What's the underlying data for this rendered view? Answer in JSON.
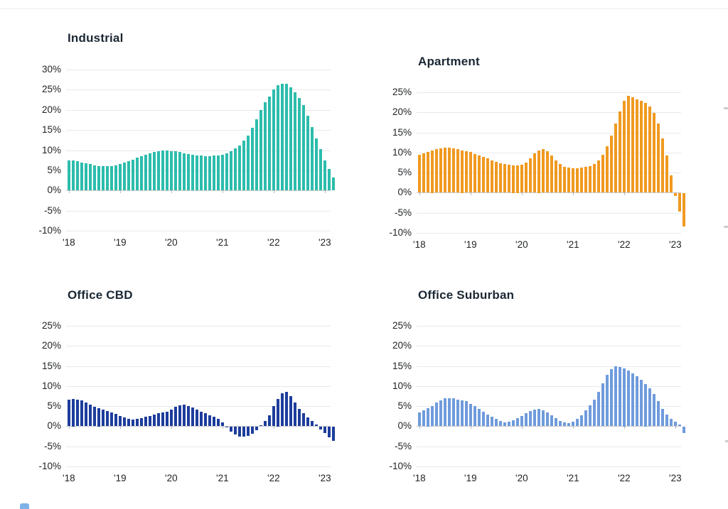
{
  "icons": {
    "bottom_left_partial": "blue-rounded-square-clipped"
  },
  "axis_unit": "%",
  "chart_data": [
    {
      "type": "bar",
      "title": "Industrial",
      "bar_color": "#2cbcac",
      "x_description": "monthly, Jan 2018 - Mar 2023",
      "x_tick_labels": [
        "'18",
        "'19",
        "'20",
        "'21",
        "'22",
        "'23"
      ],
      "y_tick_labels": [
        "30%",
        "25%",
        "20%",
        "15%",
        "10%",
        "5%",
        "0%",
        "-5%",
        "-10%"
      ],
      "ylim": [
        -10,
        30
      ],
      "grid": true,
      "values": [
        7.5,
        7.4,
        7.2,
        7.0,
        6.7,
        6.5,
        6.3,
        6.1,
        6.0,
        6.0,
        6.1,
        6.3,
        6.6,
        6.9,
        7.3,
        7.7,
        8.1,
        8.5,
        8.9,
        9.3,
        9.6,
        9.8,
        9.9,
        9.9,
        9.8,
        9.7,
        9.5,
        9.3,
        9.1,
        8.9,
        8.7,
        8.6,
        8.5,
        8.5,
        8.6,
        8.7,
        8.9,
        9.3,
        9.8,
        10.4,
        11.2,
        12.3,
        13.7,
        15.5,
        17.6,
        19.9,
        21.9,
        23.4,
        25.0,
        26.2,
        26.5,
        26.4,
        25.6,
        24.3,
        22.9,
        21.2,
        18.5,
        15.8,
        12.9,
        10.2,
        7.5,
        5.4,
        3.2
      ]
    },
    {
      "type": "bar",
      "title": "Apartment",
      "bar_color": "#f0991f",
      "x_description": "monthly, Jan 2018 - Mar 2023",
      "x_tick_labels": [
        "'18",
        "'19",
        "'20",
        "'21",
        "'22",
        "'23"
      ],
      "y_tick_labels": [
        "25%",
        "20%",
        "15%",
        "10%",
        "5%",
        "0%",
        "-5%",
        "-10%"
      ],
      "ylim": [
        -10,
        25
      ],
      "grid": true,
      "values": [
        9.4,
        9.8,
        10.2,
        10.6,
        10.9,
        11.1,
        11.2,
        11.2,
        11.1,
        10.8,
        10.6,
        10.4,
        10.1,
        9.7,
        9.3,
        8.9,
        8.5,
        8.1,
        7.7,
        7.4,
        7.1,
        7.0,
        6.8,
        6.8,
        7.0,
        7.5,
        8.6,
        9.8,
        10.6,
        10.8,
        10.4,
        9.3,
        8.0,
        7.1,
        6.5,
        6.3,
        6.1,
        6.1,
        6.2,
        6.4,
        6.7,
        7.2,
        8.1,
        9.5,
        11.5,
        14.2,
        17.3,
        20.3,
        22.8,
        24.1,
        23.7,
        23.3,
        22.9,
        22.4,
        21.4,
        19.9,
        17.2,
        13.5,
        9.2,
        4.4,
        -0.6,
        -4.6,
        -8.3
      ]
    },
    {
      "type": "bar",
      "title": "Office CBD",
      "bar_color": "#1d3d9c",
      "x_description": "monthly, Jan 2018 - Mar 2023",
      "x_tick_labels": [
        "'18",
        "'19",
        "'20",
        "'21",
        "'22",
        "'23"
      ],
      "y_tick_labels": [
        "25%",
        "20%",
        "15%",
        "10%",
        "5%",
        "0%",
        "-5%",
        "-10%"
      ],
      "ylim": [
        -10,
        25
      ],
      "grid": true,
      "values": [
        6.6,
        6.8,
        6.7,
        6.4,
        5.9,
        5.4,
        4.9,
        4.5,
        4.1,
        3.8,
        3.4,
        3.1,
        2.6,
        2.2,
        1.9,
        1.7,
        1.8,
        2.0,
        2.3,
        2.6,
        2.9,
        3.2,
        3.4,
        3.6,
        4.1,
        4.9,
        5.2,
        5.4,
        5.1,
        4.6,
        4.1,
        3.6,
        3.2,
        2.8,
        2.4,
        1.8,
        0.9,
        -0.1,
        -1.1,
        -1.9,
        -2.4,
        -2.5,
        -2.2,
        -1.7,
        -0.9,
        0.2,
        1.4,
        2.8,
        5.0,
        6.8,
        8.2,
        8.6,
        7.5,
        6.0,
        4.4,
        3.2,
        2.2,
        1.3,
        0.4,
        -0.6,
        -1.6,
        -2.6,
        -3.5
      ]
    },
    {
      "type": "bar",
      "title": "Office Suburban",
      "bar_color": "#6f9bdc",
      "x_description": "monthly, Jan 2018 - Mar 2023",
      "x_tick_labels": [
        "'18",
        "'19",
        "'20",
        "'21",
        "'22",
        "'23"
      ],
      "y_tick_labels": [
        "25%",
        "20%",
        "15%",
        "10%",
        "5%",
        "0%",
        "-5%",
        "-10%"
      ],
      "ylim": [
        -10,
        25
      ],
      "grid": true,
      "values": [
        3.5,
        4.0,
        4.5,
        5.1,
        5.9,
        6.5,
        6.9,
        7.0,
        6.9,
        6.6,
        6.4,
        6.2,
        5.5,
        5.0,
        4.4,
        3.7,
        3.0,
        2.4,
        1.8,
        1.3,
        1.0,
        1.1,
        1.5,
        2.0,
        2.6,
        3.2,
        3.8,
        4.2,
        4.3,
        4.0,
        3.5,
        2.8,
        2.1,
        1.4,
        0.9,
        0.8,
        1.2,
        1.9,
        2.8,
        3.9,
        5.2,
        6.7,
        8.5,
        10.7,
        12.8,
        14.3,
        15.0,
        14.8,
        14.4,
        13.8,
        13.1,
        12.4,
        11.6,
        10.6,
        9.4,
        8.0,
        6.3,
        4.4,
        2.9,
        1.9,
        1.2,
        0.4,
        -1.6
      ]
    }
  ]
}
